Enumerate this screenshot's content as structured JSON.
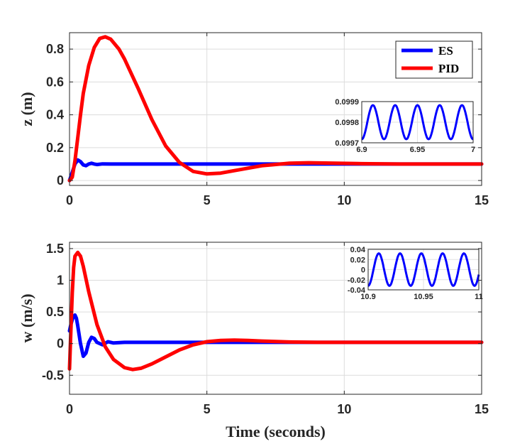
{
  "chart_data": [
    {
      "type": "line",
      "ylabel": "z (m)",
      "xlabel": "",
      "xlim": [
        0,
        15
      ],
      "ylim": [
        -0.03,
        0.9
      ],
      "xticks": [
        0,
        5,
        10,
        15
      ],
      "xtick_labels": [
        "0",
        "5",
        "10",
        "15"
      ],
      "yticks": [
        0,
        0.2,
        0.4,
        0.6,
        0.8
      ],
      "ytick_labels": [
        "0",
        "0.2",
        "0.4",
        "0.6",
        "0.8"
      ],
      "grid": true,
      "legend": {
        "location": "top-right",
        "entries": [
          "ES",
          "PID"
        ]
      },
      "series": [
        {
          "name": "ES",
          "color": "#0000ff",
          "x": [
            0,
            0.1,
            0.2,
            0.3,
            0.4,
            0.5,
            0.6,
            0.7,
            0.8,
            0.9,
            1.0,
            1.2,
            1.5,
            2,
            3,
            5,
            8,
            10,
            15
          ],
          "y": [
            0.0,
            0.05,
            0.1,
            0.125,
            0.115,
            0.095,
            0.09,
            0.1,
            0.105,
            0.1,
            0.097,
            0.101,
            0.1,
            0.1,
            0.1,
            0.1,
            0.1,
            0.1,
            0.1
          ]
        },
        {
          "name": "PID",
          "color": "#ff0000",
          "x": [
            0,
            0.1,
            0.2,
            0.3,
            0.4,
            0.5,
            0.7,
            0.9,
            1.1,
            1.3,
            1.5,
            1.8,
            2.0,
            2.5,
            3.0,
            3.5,
            4.0,
            4.5,
            5.0,
            5.5,
            6.0,
            7.0,
            8.0,
            8.7,
            9.5,
            10.5,
            12,
            15
          ],
          "y": [
            0.0,
            0.02,
            0.12,
            0.26,
            0.4,
            0.53,
            0.7,
            0.81,
            0.865,
            0.875,
            0.86,
            0.8,
            0.74,
            0.56,
            0.37,
            0.21,
            0.11,
            0.055,
            0.04,
            0.045,
            0.06,
            0.09,
            0.105,
            0.108,
            0.106,
            0.103,
            0.1,
            0.1
          ]
        }
      ],
      "inset": {
        "xlim": [
          6.9,
          7
        ],
        "ylim": [
          0.0997,
          0.0999
        ],
        "xticks": [
          6.9,
          6.95,
          7
        ],
        "xtick_labels": [
          "6.9",
          "6.95",
          "7"
        ],
        "yticks": [
          0.0997,
          0.0998,
          0.0999
        ],
        "ytick_labels": [
          "0.0997",
          "0.0998",
          "0.0999"
        ],
        "series": {
          "name": "ES",
          "color": "#0000ff",
          "mean": 0.0998,
          "amplitude": 8.25e-05,
          "cycles": 5
        }
      }
    },
    {
      "type": "line",
      "ylabel": "w (m/s)",
      "xlabel": "Time (seconds)",
      "xlim": [
        0,
        15
      ],
      "ylim": [
        -0.8,
        1.6
      ],
      "xticks": [
        0,
        5,
        10,
        15
      ],
      "xtick_labels": [
        "0",
        "5",
        "10",
        "15"
      ],
      "yticks": [
        -0.5,
        0,
        0.5,
        1,
        1.5
      ],
      "ytick_labels": [
        "-0.5",
        "0",
        "0.5",
        "1",
        "1.5"
      ],
      "grid": true,
      "series": [
        {
          "name": "ES",
          "color": "#0000ff",
          "x": [
            0,
            0.05,
            0.1,
            0.15,
            0.2,
            0.25,
            0.3,
            0.4,
            0.5,
            0.6,
            0.7,
            0.8,
            0.9,
            1.0,
            1.2,
            1.4,
            1.6,
            2,
            3,
            15
          ],
          "y": [
            0.2,
            0.3,
            0.38,
            0.43,
            0.45,
            0.4,
            0.28,
            0.0,
            -0.2,
            -0.15,
            0.02,
            0.1,
            0.08,
            0.02,
            -0.02,
            0.03,
            0.01,
            0.02,
            0.02,
            0.02
          ]
        },
        {
          "name": "PID",
          "color": "#ff0000",
          "x": [
            0,
            0.05,
            0.1,
            0.15,
            0.2,
            0.3,
            0.4,
            0.5,
            0.7,
            1.0,
            1.3,
            1.6,
            2.0,
            2.3,
            2.6,
            3.0,
            3.5,
            4.0,
            4.5,
            5.0,
            5.5,
            6.0,
            6.5,
            7.0,
            8.0,
            9.0,
            10,
            15
          ],
          "y": [
            -0.4,
            0.2,
            0.8,
            1.2,
            1.38,
            1.44,
            1.38,
            1.22,
            0.82,
            0.3,
            -0.05,
            -0.25,
            -0.38,
            -0.41,
            -0.39,
            -0.32,
            -0.21,
            -0.1,
            -0.02,
            0.03,
            0.05,
            0.055,
            0.05,
            0.04,
            0.025,
            0.02,
            0.02,
            0.02
          ]
        }
      ],
      "inset": {
        "xlim": [
          10.9,
          11
        ],
        "ylim": [
          -0.04,
          0.04
        ],
        "xticks": [
          10.9,
          10.95,
          11
        ],
        "xtick_labels": [
          "10.9",
          "10.95",
          "11"
        ],
        "yticks": [
          -0.04,
          -0.02,
          0,
          0.02,
          0.04
        ],
        "ytick_labels": [
          "-0.04",
          "-0.02",
          "0",
          "0.02",
          "0.04"
        ],
        "series": {
          "name": "ES",
          "color": "#0000ff",
          "mean": 0.0,
          "amplitude": 0.032,
          "cycles": 5.2
        }
      }
    }
  ]
}
